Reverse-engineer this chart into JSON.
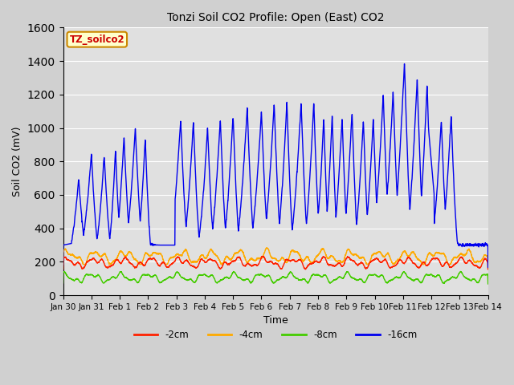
{
  "title": "Tonzi Soil CO2 Profile: Open (East) CO2",
  "xlabel": "Time",
  "ylabel": "Soil CO2 (mV)",
  "ylim": [
    0,
    1600
  ],
  "yticks": [
    0,
    200,
    400,
    600,
    800,
    1000,
    1200,
    1400,
    1600
  ],
  "colors": {
    "-2cm": "#ff2200",
    "-4cm": "#ffaa00",
    "-8cm": "#44cc00",
    "-16cm": "#0000ee"
  },
  "legend_label": "TZ_soilco2",
  "legend_box_color": "#ffffcc",
  "legend_box_edge": "#cc8800",
  "plot_bg": "#e0e0e0",
  "fig_bg": "#d0d0d0",
  "grid_color": "#ffffff",
  "line_width": 1.0,
  "figsize": [
    6.4,
    4.8
  ],
  "dpi": 100
}
